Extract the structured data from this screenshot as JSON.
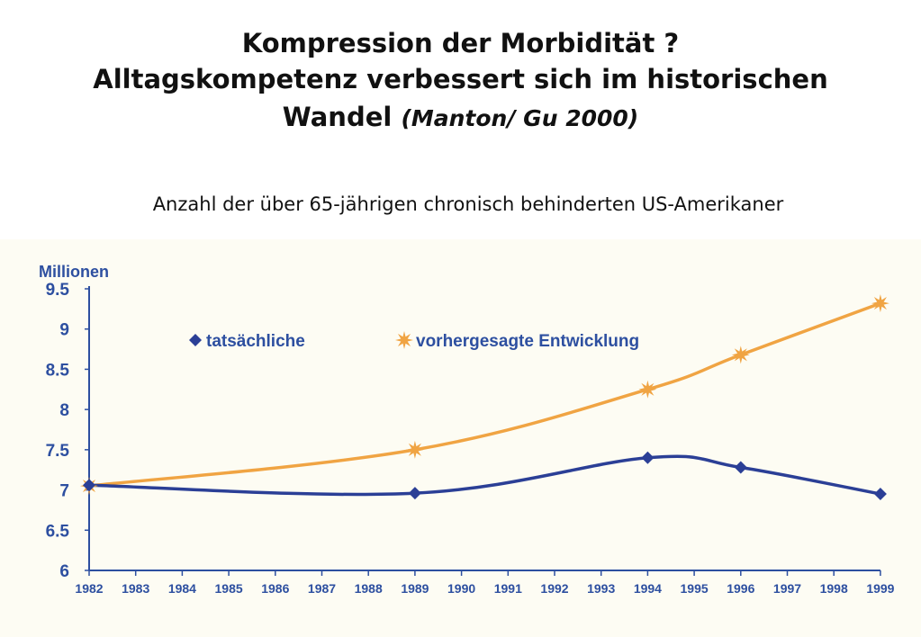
{
  "header": {
    "title_line1": "Kompression der Morbidität ?",
    "title_line2": "Alltagskompetenz verbessert sich im historischen",
    "title_line3": "Wandel",
    "title_citation": "(Manton/ Gu 2000)",
    "subtitle": "Anzahl der über 65-jährigen chronisch behinderten US-Amerikaner"
  },
  "colors": {
    "axis": "#2d4fa0",
    "actual": "#2b3f96",
    "forecast": "#f0a443",
    "panel_background": "#fdfcf3"
  },
  "chart_data": {
    "type": "line",
    "ylabel": "Millionen",
    "xlabel": "",
    "ylim": [
      6,
      9.5
    ],
    "yticks": [
      "6",
      "6.5",
      "7",
      "7.5",
      "8",
      "8.5",
      "9",
      "9.5"
    ],
    "categories": [
      "1982",
      "1983",
      "1984",
      "1985",
      "1986",
      "1987",
      "1988",
      "1989",
      "1990",
      "1991",
      "1992",
      "1993",
      "1994",
      "1995",
      "1996",
      "1997",
      "1998",
      "1999"
    ],
    "legend_position": "top",
    "grid": false,
    "series": [
      {
        "name": "tatsächliche",
        "marker": "diamond",
        "color": "#2b3f96",
        "points": [
          {
            "x": "1982",
            "y": 7.06
          },
          {
            "x": "1989",
            "y": 6.96
          },
          {
            "x": "1994",
            "y": 7.4
          },
          {
            "x": "1996",
            "y": 7.28
          },
          {
            "x": "1999",
            "y": 6.95
          }
        ]
      },
      {
        "name": "vorhergesagte Entwicklung",
        "marker": "star",
        "color": "#f0a443",
        "points": [
          {
            "x": "1982",
            "y": 7.05
          },
          {
            "x": "1989",
            "y": 7.5
          },
          {
            "x": "1994",
            "y": 8.25
          },
          {
            "x": "1996",
            "y": 8.68
          },
          {
            "x": "1999",
            "y": 9.32
          }
        ]
      }
    ]
  }
}
